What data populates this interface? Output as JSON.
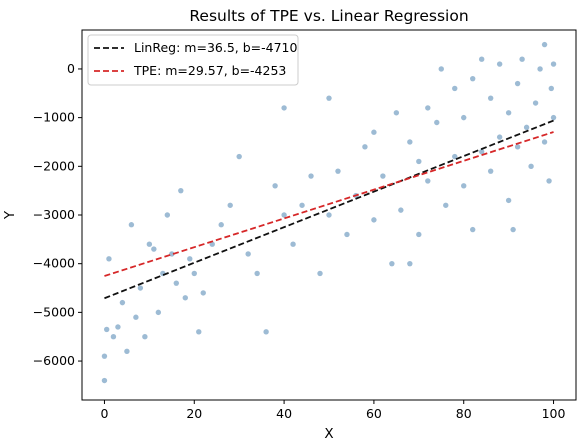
{
  "chart_data": {
    "type": "scatter",
    "title": "Results of TPE vs. Linear Regression",
    "xlabel": "X",
    "ylabel": "Y",
    "xlim": [
      -5,
      105
    ],
    "ylim": [
      -6800,
      800
    ],
    "x_ticks": [
      0,
      20,
      40,
      60,
      80,
      100
    ],
    "y_ticks": [
      -6000,
      -5000,
      -4000,
      -3000,
      -2000,
      -1000,
      0
    ],
    "x_tick_labels": [
      "0",
      "20",
      "40",
      "60",
      "80",
      "100"
    ],
    "y_tick_labels": [
      "−6000",
      "−5000",
      "−4000",
      "−3000",
      "−2000",
      "−1000",
      "0"
    ],
    "legend_placement": "upper-left",
    "scatter": {
      "color": "#5b8db8",
      "points": [
        [
          0.0,
          -6400
        ],
        [
          0.0,
          -5900
        ],
        [
          0.5,
          -5350
        ],
        [
          1.0,
          -3900
        ],
        [
          2.0,
          -5500
        ],
        [
          3.0,
          -5300
        ],
        [
          4.0,
          -4800
        ],
        [
          5.0,
          -5800
        ],
        [
          6.0,
          -3200
        ],
        [
          7.0,
          -5100
        ],
        [
          8.0,
          -4500
        ],
        [
          9.0,
          -5500
        ],
        [
          10.0,
          -3600
        ],
        [
          11.0,
          -3700
        ],
        [
          12.0,
          -5000
        ],
        [
          13.0,
          -4200
        ],
        [
          14.0,
          -3000
        ],
        [
          15.0,
          -3800
        ],
        [
          16.0,
          -4400
        ],
        [
          17.0,
          -2500
        ],
        [
          18.0,
          -4700
        ],
        [
          19.0,
          -3900
        ],
        [
          20.0,
          -4200
        ],
        [
          21.0,
          -5400
        ],
        [
          22.0,
          -4600
        ],
        [
          24.0,
          -3600
        ],
        [
          26.0,
          -3200
        ],
        [
          28.0,
          -2800
        ],
        [
          30.0,
          -1800
        ],
        [
          32.0,
          -3800
        ],
        [
          34.0,
          -4200
        ],
        [
          36.0,
          -5400
        ],
        [
          38.0,
          -2400
        ],
        [
          40.0,
          -3000
        ],
        [
          40.0,
          -800
        ],
        [
          42.0,
          -3600
        ],
        [
          44.0,
          -2800
        ],
        [
          46.0,
          -2200
        ],
        [
          48.0,
          -4200
        ],
        [
          50.0,
          -3000
        ],
        [
          50.0,
          -600
        ],
        [
          52.0,
          -2100
        ],
        [
          54.0,
          -3400
        ],
        [
          56.0,
          -2600
        ],
        [
          58.0,
          -1600
        ],
        [
          60.0,
          -3100
        ],
        [
          60.0,
          -1300
        ],
        [
          62.0,
          -2200
        ],
        [
          64.0,
          -4000
        ],
        [
          65.0,
          -900
        ],
        [
          66.0,
          -2900
        ],
        [
          68.0,
          -1500
        ],
        [
          68.0,
          -4000
        ],
        [
          70.0,
          -1900
        ],
        [
          70.0,
          -3400
        ],
        [
          72.0,
          -2300
        ],
        [
          72.0,
          -800
        ],
        [
          74.0,
          -1100
        ],
        [
          75.0,
          0
        ],
        [
          76.0,
          -2800
        ],
        [
          78.0,
          -1800
        ],
        [
          78.0,
          -400
        ],
        [
          80.0,
          -2400
        ],
        [
          80.0,
          -1000
        ],
        [
          82.0,
          -3300
        ],
        [
          82.0,
          -200
        ],
        [
          84.0,
          -1700
        ],
        [
          84.0,
          200
        ],
        [
          86.0,
          -2100
        ],
        [
          86.0,
          -600
        ],
        [
          88.0,
          -1400
        ],
        [
          88.0,
          100
        ],
        [
          90.0,
          -2700
        ],
        [
          90.0,
          -900
        ],
        [
          91.0,
          -3300
        ],
        [
          92.0,
          -1600
        ],
        [
          92.0,
          -300
        ],
        [
          93.0,
          200
        ],
        [
          94.0,
          -1200
        ],
        [
          95.0,
          -2000
        ],
        [
          96.0,
          -700
        ],
        [
          97.0,
          0
        ],
        [
          98.0,
          -1500
        ],
        [
          98.0,
          500
        ],
        [
          99.0,
          -2300
        ],
        [
          99.5,
          -400
        ],
        [
          100.0,
          -1000
        ],
        [
          100.0,
          100
        ]
      ]
    },
    "series": [
      {
        "name": "LinReg: m=36.5, b=-4710",
        "type": "line",
        "slope": 36.5,
        "intercept": -4710,
        "x_range": [
          0,
          100
        ],
        "color": "#111111",
        "dash": "dashed"
      },
      {
        "name": "TPE: m=29.57, b=-4253",
        "type": "line",
        "slope": 29.57,
        "intercept": -4253,
        "x_range": [
          0,
          100
        ],
        "color": "#d62728",
        "dash": "dashed"
      }
    ]
  }
}
